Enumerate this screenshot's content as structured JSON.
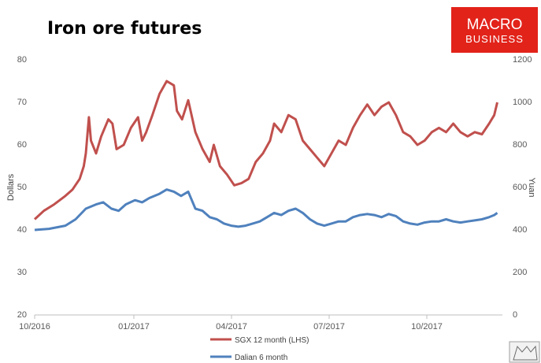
{
  "brand": {
    "line1": "MACRO",
    "line2": "BUSINESS",
    "bg_color": "#e2231a"
  },
  "chart_data": {
    "type": "line",
    "title": "Iron ore futures",
    "ylabel": "Dollars",
    "y2label": "Yuan",
    "ylim": [
      20,
      80
    ],
    "y2lim": [
      0,
      1200
    ],
    "yticks": [
      "20",
      "30",
      "40",
      "50",
      "60",
      "70",
      "80"
    ],
    "y2ticks": [
      "0",
      "200",
      "400",
      "600",
      "800",
      "1000",
      "1200"
    ],
    "xticks": [
      "10/2016",
      "01/2017",
      "04/2017",
      "07/2017",
      "10/2017"
    ],
    "x_range_months": [
      "2016-10",
      "2018-01"
    ],
    "grid": false,
    "legend_position": "bottom",
    "series": [
      {
        "name": "SGX 12 month (LHS)",
        "axis": "left",
        "color": "#c0504d",
        "points": [
          [
            "2016-10-01",
            42.5
          ],
          [
            "2016-10-10",
            44.5
          ],
          [
            "2016-10-20",
            46
          ],
          [
            "2016-10-31",
            48
          ],
          [
            "2016-11-07",
            49.5
          ],
          [
            "2016-11-14",
            52
          ],
          [
            "2016-11-18",
            55
          ],
          [
            "2016-11-20",
            58
          ],
          [
            "2016-11-23",
            66.5
          ],
          [
            "2016-11-25",
            61
          ],
          [
            "2016-11-30",
            58
          ],
          [
            "2016-12-05",
            62
          ],
          [
            "2016-12-12",
            66
          ],
          [
            "2016-12-16",
            65
          ],
          [
            "2016-12-20",
            59
          ],
          [
            "2016-12-27",
            60
          ],
          [
            "2017-01-03",
            64
          ],
          [
            "2017-01-10",
            66.5
          ],
          [
            "2017-01-14",
            61
          ],
          [
            "2017-01-18",
            63
          ],
          [
            "2017-01-24",
            67
          ],
          [
            "2017-01-31",
            72
          ],
          [
            "2017-02-07",
            75
          ],
          [
            "2017-02-14",
            74
          ],
          [
            "2017-02-17",
            68
          ],
          [
            "2017-02-22",
            66
          ],
          [
            "2017-02-28",
            70.5
          ],
          [
            "2017-03-07",
            63
          ],
          [
            "2017-03-14",
            59
          ],
          [
            "2017-03-21",
            56
          ],
          [
            "2017-03-25",
            60
          ],
          [
            "2017-03-31",
            55
          ],
          [
            "2017-04-07",
            53
          ],
          [
            "2017-04-14",
            50.5
          ],
          [
            "2017-04-21",
            51
          ],
          [
            "2017-04-28",
            52
          ],
          [
            "2017-05-05",
            56
          ],
          [
            "2017-05-12",
            58
          ],
          [
            "2017-05-19",
            61
          ],
          [
            "2017-05-23",
            65
          ],
          [
            "2017-05-30",
            63
          ],
          [
            "2017-06-06",
            67
          ],
          [
            "2017-06-13",
            66
          ],
          [
            "2017-06-20",
            61
          ],
          [
            "2017-06-27",
            59
          ],
          [
            "2017-07-04",
            57
          ],
          [
            "2017-07-11",
            55
          ],
          [
            "2017-07-18",
            58
          ],
          [
            "2017-07-25",
            61
          ],
          [
            "2017-08-01",
            60
          ],
          [
            "2017-08-08",
            64
          ],
          [
            "2017-08-15",
            67
          ],
          [
            "2017-08-22",
            69.5
          ],
          [
            "2017-08-29",
            67
          ],
          [
            "2017-09-05",
            69
          ],
          [
            "2017-09-12",
            70
          ],
          [
            "2017-09-19",
            67
          ],
          [
            "2017-09-26",
            63
          ],
          [
            "2017-10-03",
            62
          ],
          [
            "2017-10-10",
            60
          ],
          [
            "2017-10-17",
            61
          ],
          [
            "2017-10-24",
            63
          ],
          [
            "2017-10-31",
            64
          ],
          [
            "2017-11-07",
            63
          ],
          [
            "2017-11-14",
            65
          ],
          [
            "2017-11-21",
            63
          ],
          [
            "2017-11-28",
            62
          ],
          [
            "2017-12-05",
            63
          ],
          [
            "2017-12-12",
            62.5
          ],
          [
            "2017-12-19",
            65
          ],
          [
            "2017-12-24",
            67
          ],
          [
            "2017-12-27",
            70
          ]
        ]
      },
      {
        "name": "Dalian 6 month",
        "axis": "right",
        "color": "#4f81bd",
        "points": [
          [
            "2016-10-01",
            400
          ],
          [
            "2016-10-15",
            405
          ],
          [
            "2016-10-31",
            420
          ],
          [
            "2016-11-10",
            450
          ],
          [
            "2016-11-20",
            500
          ],
          [
            "2016-11-30",
            520
          ],
          [
            "2016-12-07",
            530
          ],
          [
            "2016-12-15",
            500
          ],
          [
            "2016-12-22",
            490
          ],
          [
            "2016-12-29",
            520
          ],
          [
            "2017-01-07",
            540
          ],
          [
            "2017-01-14",
            530
          ],
          [
            "2017-01-21",
            550
          ],
          [
            "2017-01-31",
            570
          ],
          [
            "2017-02-07",
            590
          ],
          [
            "2017-02-14",
            580
          ],
          [
            "2017-02-21",
            560
          ],
          [
            "2017-02-28",
            580
          ],
          [
            "2017-03-07",
            500
          ],
          [
            "2017-03-14",
            490
          ],
          [
            "2017-03-21",
            460
          ],
          [
            "2017-03-28",
            450
          ],
          [
            "2017-04-04",
            430
          ],
          [
            "2017-04-11",
            420
          ],
          [
            "2017-04-18",
            415
          ],
          [
            "2017-04-25",
            420
          ],
          [
            "2017-05-02",
            430
          ],
          [
            "2017-05-09",
            440
          ],
          [
            "2017-05-16",
            460
          ],
          [
            "2017-05-23",
            480
          ],
          [
            "2017-05-30",
            470
          ],
          [
            "2017-06-06",
            490
          ],
          [
            "2017-06-13",
            500
          ],
          [
            "2017-06-20",
            480
          ],
          [
            "2017-06-27",
            450
          ],
          [
            "2017-07-04",
            430
          ],
          [
            "2017-07-11",
            420
          ],
          [
            "2017-07-18",
            430
          ],
          [
            "2017-07-25",
            440
          ],
          [
            "2017-08-01",
            440
          ],
          [
            "2017-08-08",
            460
          ],
          [
            "2017-08-15",
            470
          ],
          [
            "2017-08-22",
            475
          ],
          [
            "2017-08-29",
            470
          ],
          [
            "2017-09-05",
            460
          ],
          [
            "2017-09-12",
            475
          ],
          [
            "2017-09-19",
            465
          ],
          [
            "2017-09-26",
            440
          ],
          [
            "2017-10-03",
            430
          ],
          [
            "2017-10-10",
            425
          ],
          [
            "2017-10-17",
            435
          ],
          [
            "2017-10-24",
            440
          ],
          [
            "2017-10-31",
            440
          ],
          [
            "2017-11-07",
            450
          ],
          [
            "2017-11-14",
            440
          ],
          [
            "2017-11-21",
            435
          ],
          [
            "2017-11-28",
            440
          ],
          [
            "2017-12-05",
            445
          ],
          [
            "2017-12-12",
            450
          ],
          [
            "2017-12-19",
            460
          ],
          [
            "2017-12-24",
            470
          ],
          [
            "2017-12-27",
            480
          ]
        ]
      }
    ]
  }
}
